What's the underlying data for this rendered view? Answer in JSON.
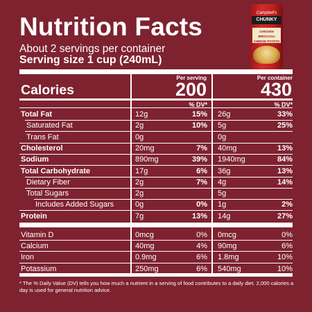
{
  "title": "Nutrition Facts",
  "servings_per_container": "About 2 servings per container",
  "serving_size": "Serving size  1 cup (240mL)",
  "product_image": {
    "brand": "Campbell's",
    "line": "CHUNKY",
    "flavor": "CHICKEN BROCCOLI CHEESE POTATO"
  },
  "header": {
    "calories_label": "Calories",
    "per_serving_label": "Per serving",
    "per_container_label": "Per container",
    "calories_per_serving": "200",
    "calories_per_container": "430",
    "dv_label": "% DV*"
  },
  "nutrients": [
    {
      "label": "Total Fat",
      "bold": true,
      "indent": 0,
      "ps": "12g",
      "ps_dv": "15%",
      "pc": "26g",
      "pc_dv": "33%"
    },
    {
      "label": "Saturated Fat",
      "bold": false,
      "indent": 1,
      "ps": "2g",
      "ps_dv": "10%",
      "pc": "5g",
      "pc_dv": "25%"
    },
    {
      "label": "Trans Fat",
      "bold": false,
      "indent": 1,
      "ps": "0g",
      "ps_dv": "",
      "pc": "0g",
      "pc_dv": ""
    },
    {
      "label": "Cholesterol",
      "bold": true,
      "indent": 0,
      "ps": "20mg",
      "ps_dv": "7%",
      "pc": "40mg",
      "pc_dv": "13%"
    },
    {
      "label": "Sodium",
      "bold": true,
      "indent": 0,
      "ps": "890mg",
      "ps_dv": "39%",
      "pc": "1940mg",
      "pc_dv": "84%"
    },
    {
      "label": "Total Carbohydrate",
      "bold": true,
      "indent": 0,
      "ps": "17g",
      "ps_dv": "6%",
      "pc": "36g",
      "pc_dv": "13%"
    },
    {
      "label": "Dietary Fiber",
      "bold": false,
      "indent": 1,
      "ps": "2g",
      "ps_dv": "7%",
      "pc": "4g",
      "pc_dv": "14%"
    },
    {
      "label": "Total Sugars",
      "bold": false,
      "indent": 1,
      "ps": "2g",
      "ps_dv": "",
      "pc": "5g",
      "pc_dv": ""
    },
    {
      "label": "Includes Added Sugars",
      "bold": false,
      "indent": 2,
      "ps": "0g",
      "ps_dv": "0%",
      "pc": "1g",
      "pc_dv": "2%"
    },
    {
      "label": "Protein",
      "bold": true,
      "indent": 0,
      "ps": "7g",
      "ps_dv": "13%",
      "pc": "14g",
      "pc_dv": "27%"
    }
  ],
  "vitamins": [
    {
      "label": "Vitamin D",
      "ps": "0mcg",
      "ps_dv": "0%",
      "pc": "0mcg",
      "pc_dv": "0%"
    },
    {
      "label": "Calcium",
      "ps": "40mg",
      "ps_dv": "4%",
      "pc": "90mg",
      "pc_dv": "6%"
    },
    {
      "label": "Iron",
      "ps": "0.9mg",
      "ps_dv": "6%",
      "pc": "1.8mg",
      "pc_dv": "10%"
    },
    {
      "label": "Potassium",
      "ps": "250mg",
      "ps_dv": "6%",
      "pc": "540mg",
      "pc_dv": "10%"
    }
  ],
  "footnote": "* The % Daily Value (DV) tells you how much a nutrient in a serving of food contributes to a daily diet. 2,000 calories a day is used for general nutrition advice."
}
